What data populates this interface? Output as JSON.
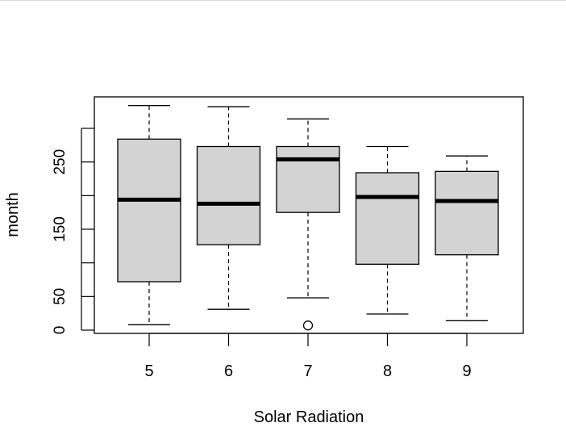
{
  "chart_data": {
    "type": "boxplot",
    "title": "",
    "xlabel": "Solar Radiation",
    "ylabel": "month",
    "ylim": [
      -7,
      334
    ],
    "yticks": [
      0,
      50,
      100,
      150,
      200,
      250,
      300
    ],
    "ytick_labels": [
      "0",
      "50",
      "",
      "150",
      "",
      "250",
      ""
    ],
    "categories": [
      "5",
      "6",
      "7",
      "8",
      "9"
    ],
    "boxes": [
      {
        "name": "5",
        "whisker_low": 8,
        "q1": 72,
        "median": 194,
        "q3": 284,
        "whisker_high": 334,
        "outliers": []
      },
      {
        "name": "6",
        "whisker_low": 31,
        "q1": 127,
        "median": 188,
        "q3": 273,
        "whisker_high": 332,
        "outliers": []
      },
      {
        "name": "7",
        "whisker_low": 48,
        "q1": 175,
        "median": 254,
        "q3": 273,
        "whisker_high": 314,
        "outliers": [
          7
        ]
      },
      {
        "name": "8",
        "whisker_low": 24,
        "q1": 98,
        "median": 198,
        "q3": 234,
        "whisker_high": 273,
        "outliers": []
      },
      {
        "name": "9",
        "whisker_low": 14,
        "q1": 112,
        "median": 192,
        "q3": 236,
        "whisker_high": 259,
        "outliers": []
      }
    ],
    "colors": {
      "box_fill": "#d3d3d3",
      "stroke": "#000000"
    }
  }
}
